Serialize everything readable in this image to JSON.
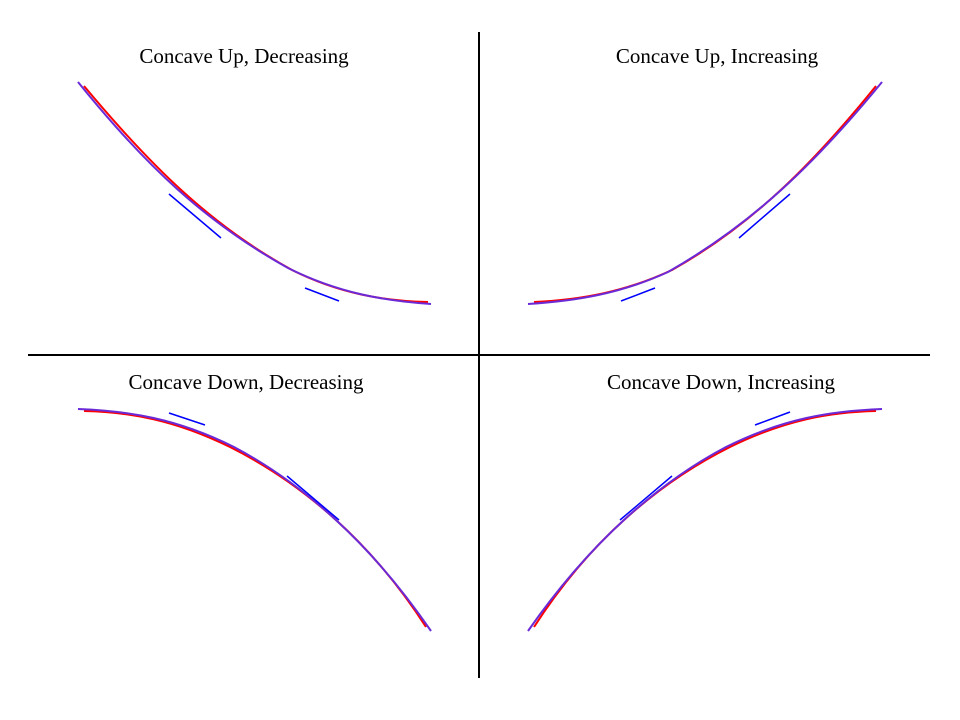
{
  "colors": {
    "background": "#ffffff",
    "axis": "#000000",
    "curve": "#ff0000",
    "tangent": "#0000ff",
    "blend": "#6a2ad8"
  },
  "quadrants": [
    {
      "id": "top-left",
      "title": "Concave Up, Decreasing",
      "concavity": "up",
      "direction": "decreasing"
    },
    {
      "id": "top-right",
      "title": "Concave Up, Increasing",
      "concavity": "up",
      "direction": "increasing"
    },
    {
      "id": "bottom-left",
      "title": "Concave Down, Decreasing",
      "concavity": "down",
      "direction": "decreasing"
    },
    {
      "id": "bottom-right",
      "title": "Concave Down, Increasing",
      "concavity": "down",
      "direction": "increasing"
    }
  ]
}
